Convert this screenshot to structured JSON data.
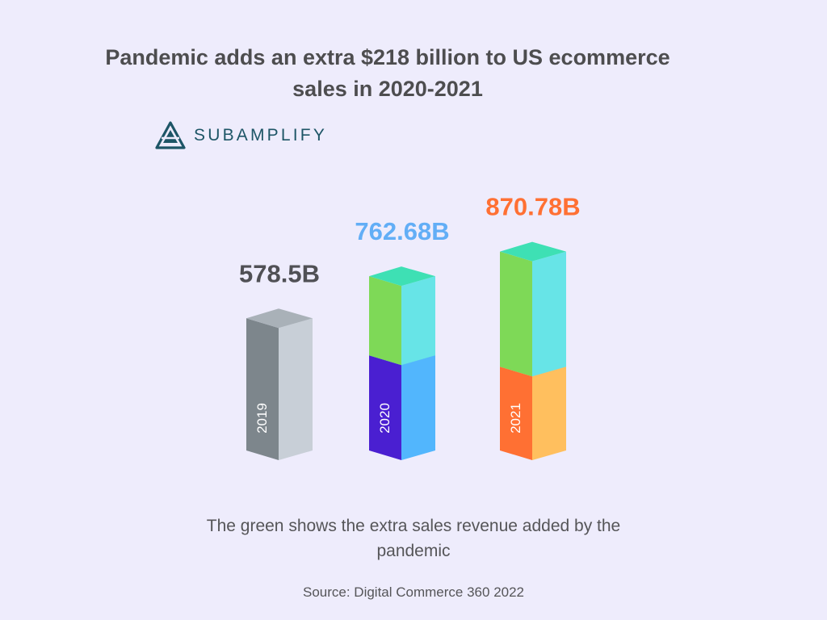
{
  "chart_data": {
    "type": "bar",
    "title": "Pandemic adds an extra $218 billion to US ecommerce sales in 2020-2021",
    "categories": [
      "2019",
      "2020",
      "2021"
    ],
    "values": [
      578.5,
      762.68,
      870.78
    ],
    "value_labels": [
      "578.5B",
      "762.68B",
      "870.78B"
    ],
    "unit": "B",
    "label_colors": [
      "#505055",
      "#62aef6",
      "#ff7033"
    ],
    "note": "The green shows the extra sales revenue added by the pandemic",
    "source": "Source: Digital Commerce 360 2022"
  },
  "logo": {
    "text": "SUBAMPLIFY",
    "color": "#1d5566"
  },
  "colors": {
    "background": "#eeecfc",
    "pandemic_extra_front": "#7ed957",
    "pandemic_extra_side": "#67e4e7",
    "pandemic_extra_top": "#3ee0b4"
  }
}
